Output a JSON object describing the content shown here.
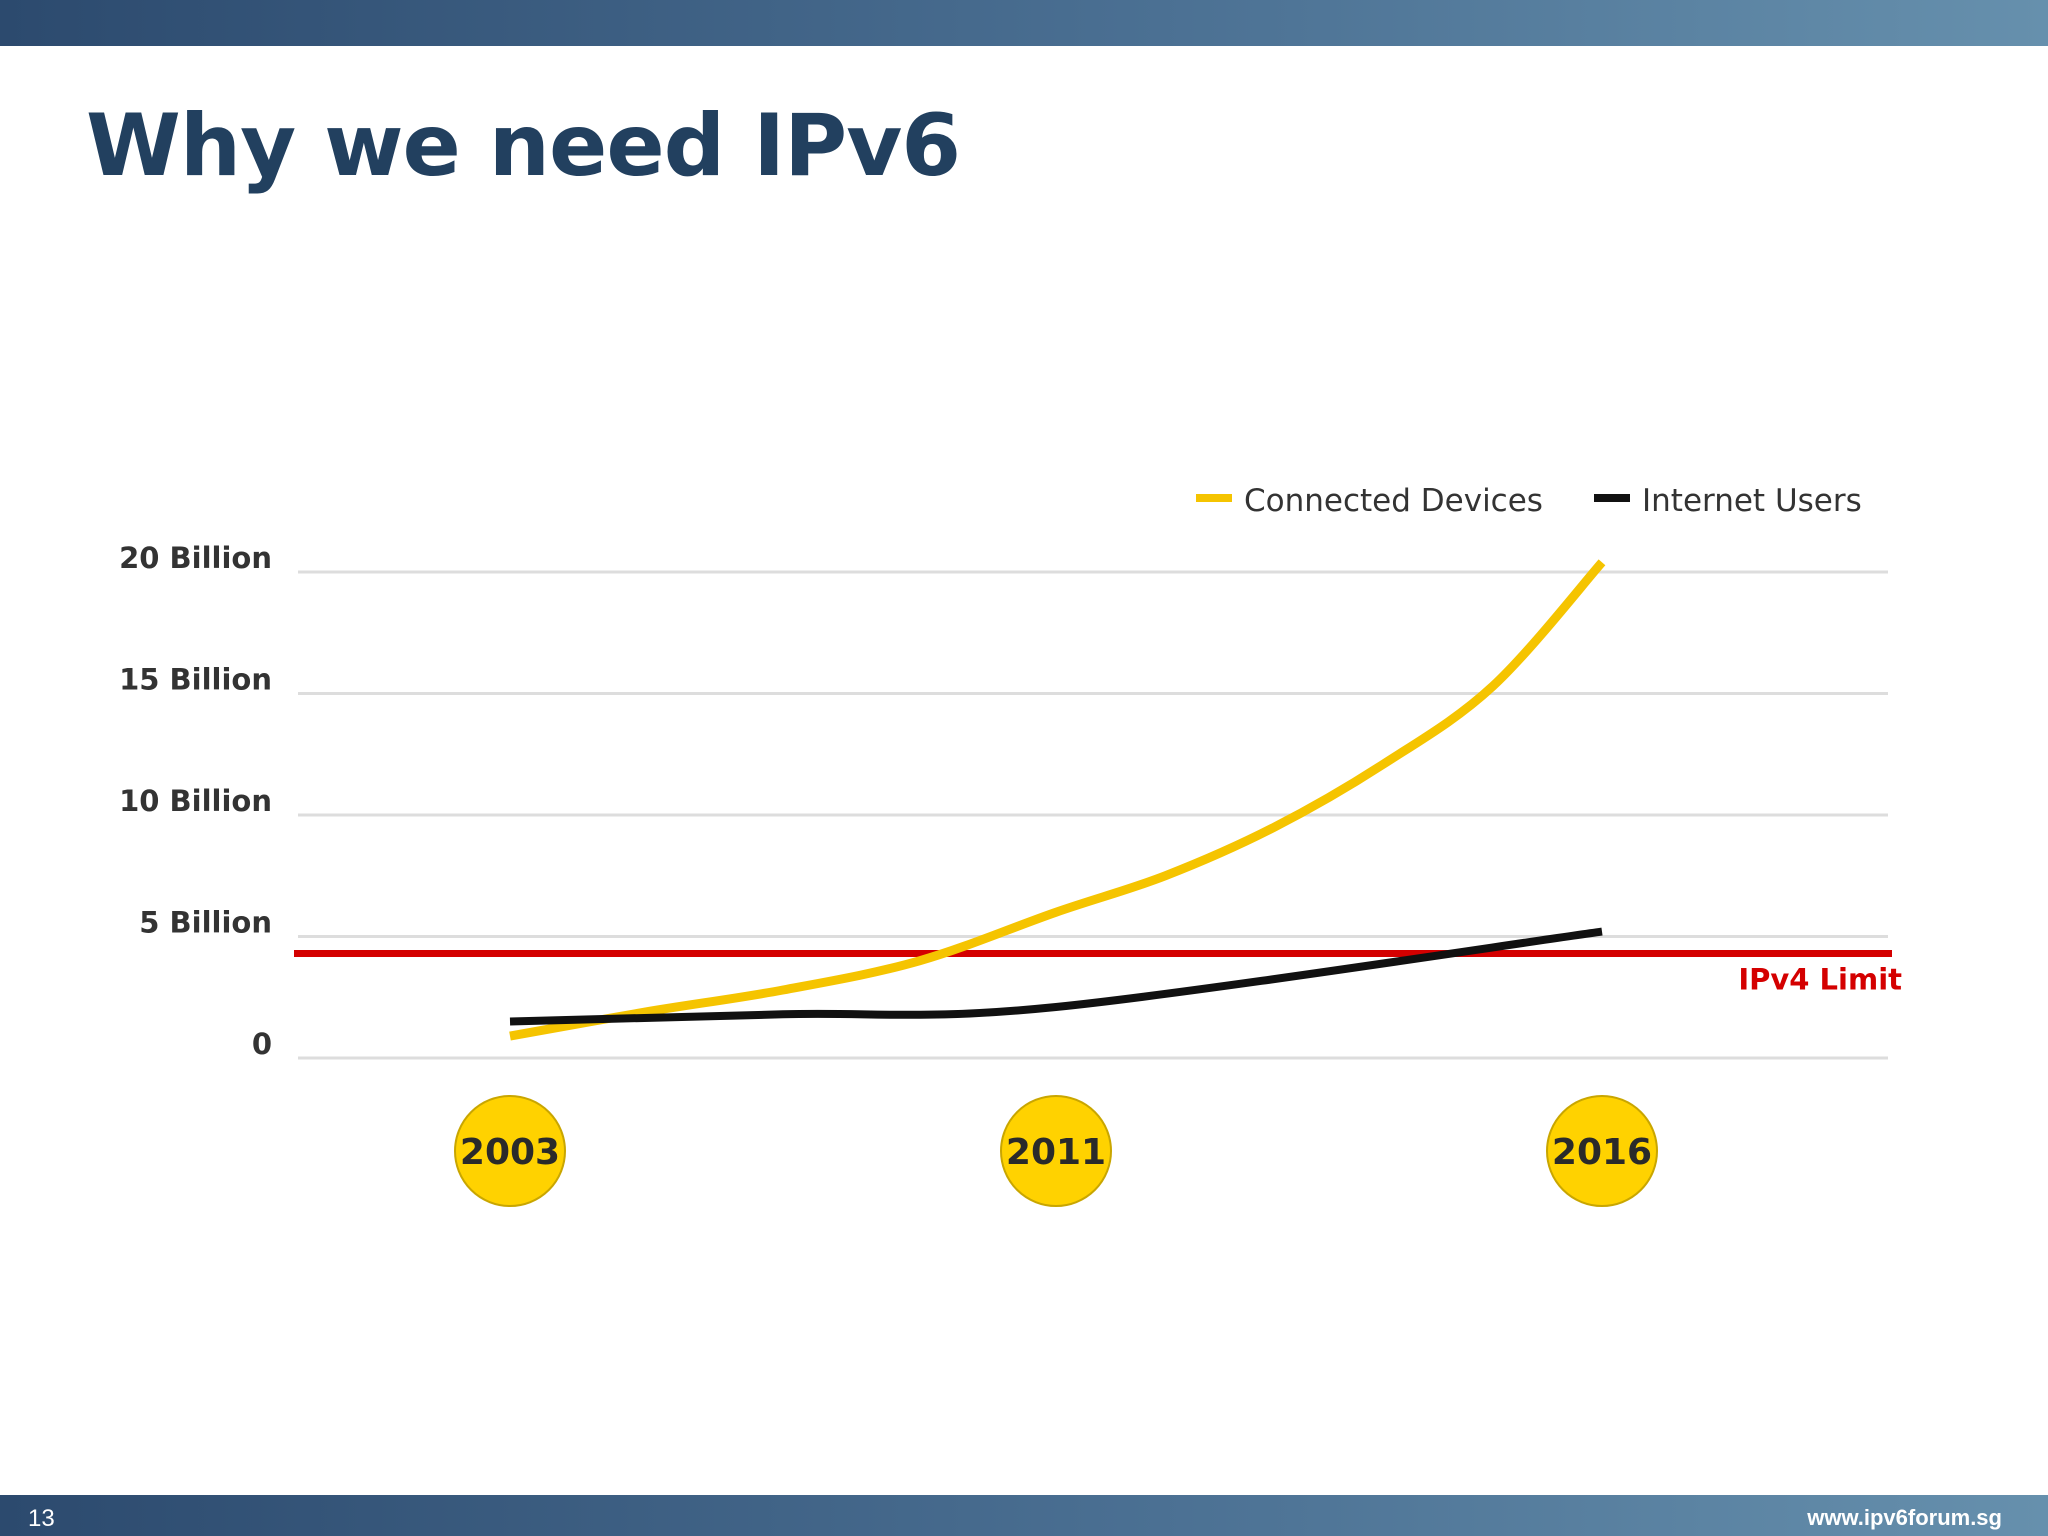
{
  "slide": {
    "title": "Why we need IPv6",
    "page_number": "13",
    "footer_url": "www.ipv6forum.sg"
  },
  "colors": {
    "header_bar": "#2c4a6e",
    "title": "#22405f",
    "connected_devices": "#f5c400",
    "internet_users": "#111111",
    "ipv4_limit": "#d40000",
    "year_badge": "#ffd200",
    "grid": "#dddddd"
  },
  "chart_data": {
    "type": "line",
    "title": "",
    "xlabel": "",
    "ylabel": "",
    "ylim": [
      0,
      20
    ],
    "x_ticks": [
      "2003",
      "2011",
      "2016"
    ],
    "y_ticks": [
      {
        "value": 0,
        "label": "0"
      },
      {
        "value": 5,
        "label": "5 Billion"
      },
      {
        "value": 10,
        "label": "10 Billion"
      },
      {
        "value": 15,
        "label": "15 Billion"
      },
      {
        "value": 20,
        "label": "20 Billion"
      }
    ],
    "grid": true,
    "legend_position": "top-right",
    "series": [
      {
        "name": "Connected Devices",
        "color": "#f5c400",
        "x": [
          2003,
          2005,
          2007,
          2009,
          2011,
          2012,
          2013,
          2014,
          2015,
          2016
        ],
        "values": [
          0.9,
          1.9,
          2.8,
          4.0,
          6.0,
          7.5,
          9.5,
          12.1,
          15.3,
          20.4
        ]
      },
      {
        "name": "Internet Users",
        "color": "#111111",
        "x": [
          2003,
          2007,
          2011,
          2016
        ],
        "values": [
          1.5,
          1.8,
          2.1,
          5.2
        ]
      }
    ],
    "reference_line": {
      "label": "IPv4 Limit",
      "value": 4.3,
      "color": "#d40000"
    }
  }
}
